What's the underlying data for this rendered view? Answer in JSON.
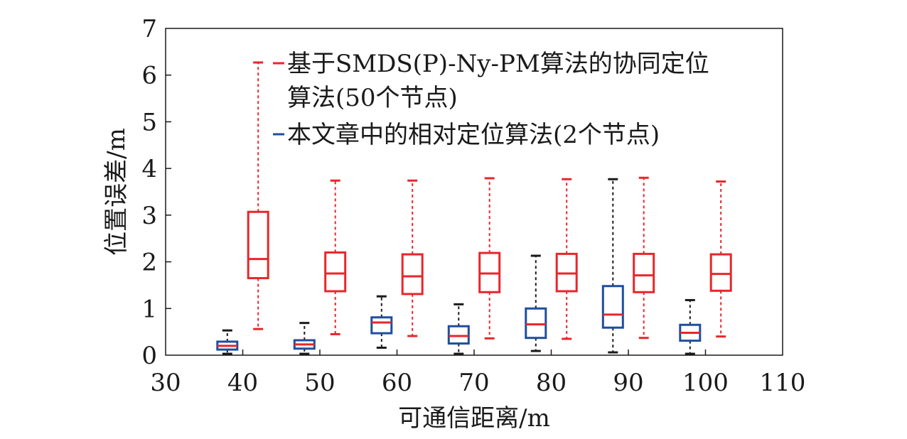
{
  "chart_data": {
    "type": "box",
    "xlabel": "可通信距离/m",
    "ylabel": "位置误差/m",
    "xlim": [
      30,
      110
    ],
    "ylim": [
      0,
      7
    ],
    "x_ticks": [
      30,
      40,
      50,
      60,
      70,
      80,
      90,
      100,
      110
    ],
    "y_ticks": [
      0,
      1,
      2,
      3,
      4,
      5,
      6,
      7
    ],
    "legend": {
      "placement": "top-right",
      "entries": [
        {
          "series": "red",
          "line1": "基于SMDS(P)-Ny-PM算法的协同定位",
          "line2": "算法(50个节点)"
        },
        {
          "series": "blue",
          "line1": "本文章中的相对定位算法(2个节点)"
        }
      ]
    },
    "series": [
      {
        "key": "red",
        "name": "基于SMDS(P)-Ny-PM算法的协同定位算法(50个节点)",
        "box_color": "#e8262b",
        "whisker_color": "#e8262b",
        "median_color": "#e8262b",
        "boxes": [
          {
            "x": 42,
            "min": 0.56,
            "q1": 1.65,
            "median": 2.06,
            "q3": 3.07,
            "max": 6.27
          },
          {
            "x": 52,
            "min": 0.45,
            "q1": 1.37,
            "median": 1.75,
            "q3": 2.2,
            "max": 3.74
          },
          {
            "x": 62,
            "min": 0.41,
            "q1": 1.31,
            "median": 1.69,
            "q3": 2.16,
            "max": 3.74
          },
          {
            "x": 72,
            "min": 0.36,
            "q1": 1.35,
            "median": 1.75,
            "q3": 2.19,
            "max": 3.79
          },
          {
            "x": 82,
            "min": 0.35,
            "q1": 1.37,
            "median": 1.75,
            "q3": 2.17,
            "max": 3.77
          },
          {
            "x": 92,
            "min": 0.37,
            "q1": 1.35,
            "median": 1.71,
            "q3": 2.17,
            "max": 3.8
          },
          {
            "x": 102,
            "min": 0.4,
            "q1": 1.38,
            "median": 1.74,
            "q3": 2.16,
            "max": 3.72
          }
        ]
      },
      {
        "key": "blue",
        "name": "本文章中的相对定位算法(2个节点)",
        "box_color": "#1f4e9c",
        "whisker_color": "#1a1a1a",
        "median_color": "#e8262b",
        "boxes": [
          {
            "x": 38,
            "min": 0.03,
            "q1": 0.12,
            "median": 0.2,
            "q3": 0.29,
            "max": 0.53
          },
          {
            "x": 48,
            "min": 0.03,
            "q1": 0.14,
            "median": 0.23,
            "q3": 0.32,
            "max": 0.69
          },
          {
            "x": 58,
            "min": 0.16,
            "q1": 0.47,
            "median": 0.7,
            "q3": 0.81,
            "max": 1.26
          },
          {
            "x": 68,
            "min": 0.03,
            "q1": 0.25,
            "median": 0.41,
            "q3": 0.62,
            "max": 1.09
          },
          {
            "x": 78,
            "min": 0.09,
            "q1": 0.37,
            "median": 0.66,
            "q3": 1.0,
            "max": 2.13
          },
          {
            "x": 88,
            "min": 0.06,
            "q1": 0.59,
            "median": 0.87,
            "q3": 1.48,
            "max": 3.77
          },
          {
            "x": 98,
            "min": 0.03,
            "q1": 0.31,
            "median": 0.48,
            "q3": 0.65,
            "max": 1.18
          }
        ]
      }
    ]
  }
}
